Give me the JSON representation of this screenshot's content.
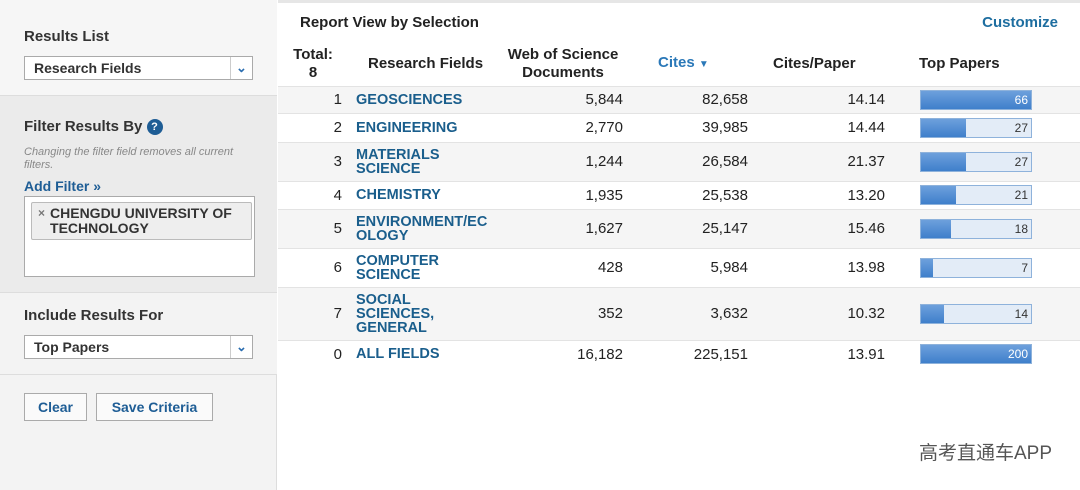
{
  "sidebar": {
    "results_list": {
      "label": "Results List",
      "selected": "Research Fields"
    },
    "filter": {
      "title": "Filter Results By",
      "help": "?",
      "note": "Changing the filter field removes all current filters.",
      "add_filter": "Add Filter »",
      "tag_remove": "×",
      "tags": [
        "CHENGDU UNIVERSITY OF TECHNOLOGY"
      ]
    },
    "include": {
      "label": "Include Results For",
      "selected": "Top Papers"
    },
    "buttons": [
      "Clear",
      "Save Criteria"
    ]
  },
  "report": {
    "title": "Report View by Selection",
    "customize": "Customize",
    "total_label": "Total:",
    "total_count": "8",
    "columns": [
      "Research Fields",
      "Web of Science Documents",
      "Cites",
      "Cites/Paper",
      "Top Papers"
    ],
    "rows": [
      {
        "rank": "1",
        "field": "GEOSCIENCES",
        "documents": "5,844",
        "cites": "82,658",
        "cites_per_paper": "14.14",
        "top_papers": 66
      },
      {
        "rank": "2",
        "field": "ENGINEERING",
        "documents": "2,770",
        "cites": "39,985",
        "cites_per_paper": "14.44",
        "top_papers": 27
      },
      {
        "rank": "3",
        "field": "MATERIALS SCIENCE",
        "documents": "1,244",
        "cites": "26,584",
        "cites_per_paper": "21.37",
        "top_papers": 27
      },
      {
        "rank": "4",
        "field": "CHEMISTRY",
        "documents": "1,935",
        "cites": "25,538",
        "cites_per_paper": "13.20",
        "top_papers": 21
      },
      {
        "rank": "5",
        "field": "ENVIRONMENT/ECOLOGY",
        "documents": "1,627",
        "cites": "25,147",
        "cites_per_paper": "15.46",
        "top_papers": 18
      },
      {
        "rank": "6",
        "field": "COMPUTER SCIENCE",
        "documents": "428",
        "cites": "5,984",
        "cites_per_paper": "13.98",
        "top_papers": 7
      },
      {
        "rank": "7",
        "field": "SOCIAL SCIENCES, GENERAL",
        "documents": "352",
        "cites": "3,632",
        "cites_per_paper": "10.32",
        "top_papers": 14
      }
    ],
    "all_fields": {
      "rank": "0",
      "field": "ALL FIELDS",
      "documents": "16,182",
      "cites": "225,151",
      "cites_per_paper": "13.91",
      "top_papers": 200
    }
  },
  "watermark": "高考直通车APP"
}
